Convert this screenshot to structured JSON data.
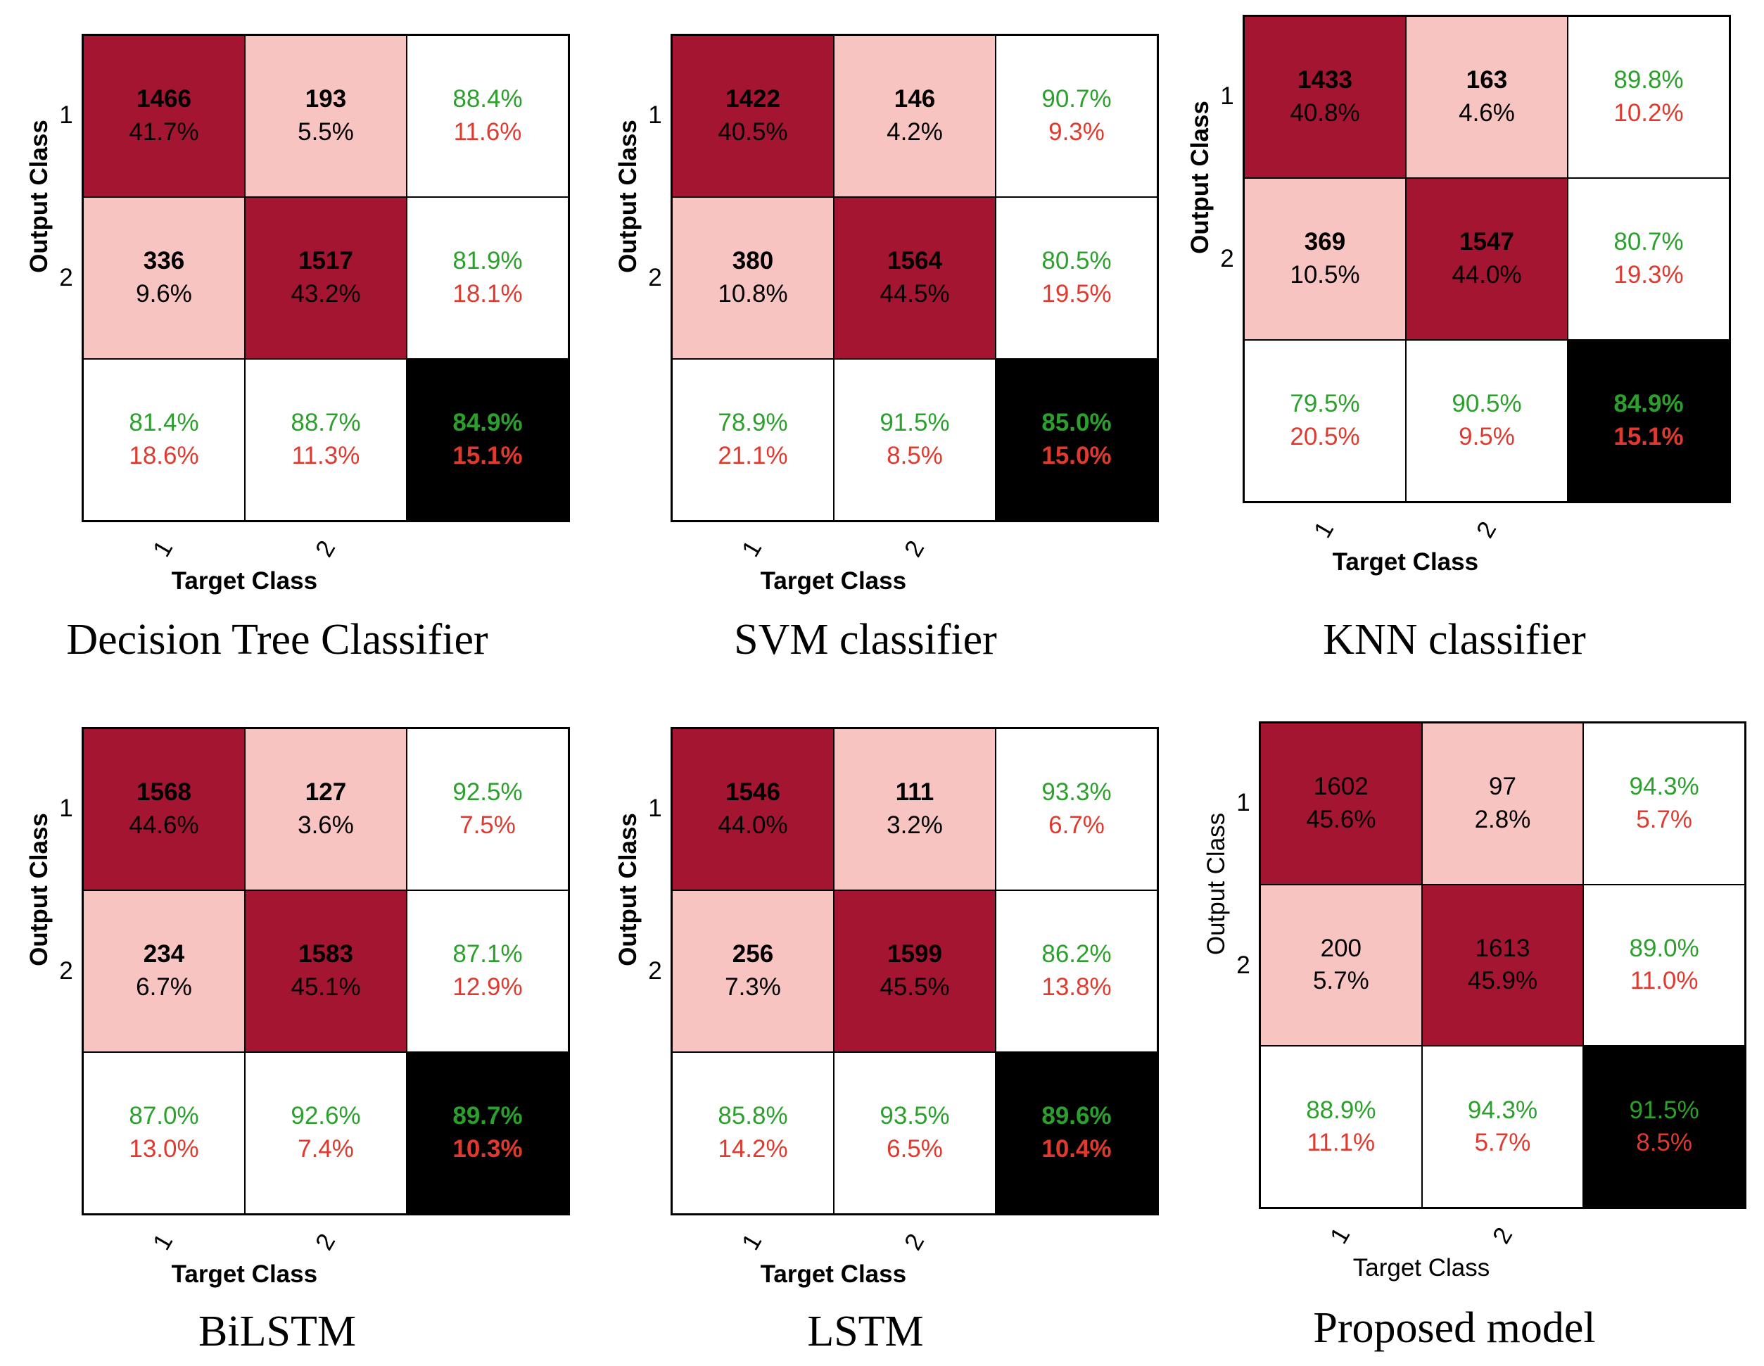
{
  "chart_data": [
    {
      "type": "table",
      "title": "Decision Tree Classifier",
      "ylabel": "Output Class",
      "xlabel": "Target Class",
      "row_ticks": [
        "1",
        "2"
      ],
      "col_ticks": [
        "1",
        "2"
      ],
      "matrix": [
        [
          {
            "n": "1466",
            "p": "41.7%"
          },
          {
            "n": "193",
            "p": "5.5%"
          },
          {
            "g": "88.4%",
            "r": "11.6%"
          }
        ],
        [
          {
            "n": "336",
            "p": "9.6%"
          },
          {
            "n": "1517",
            "p": "43.2%"
          },
          {
            "g": "81.9%",
            "r": "18.1%"
          }
        ],
        [
          {
            "g": "81.4%",
            "r": "18.6%"
          },
          {
            "g": "88.7%",
            "r": "11.3%"
          },
          {
            "g": "84.9%",
            "r": "15.1%"
          }
        ]
      ]
    },
    {
      "type": "table",
      "title": "SVM classifier",
      "ylabel": "Output Class",
      "xlabel": "Target Class",
      "row_ticks": [
        "1",
        "2"
      ],
      "col_ticks": [
        "1",
        "2"
      ],
      "matrix": [
        [
          {
            "n": "1422",
            "p": "40.5%"
          },
          {
            "n": "146",
            "p": "4.2%"
          },
          {
            "g": "90.7%",
            "r": "9.3%"
          }
        ],
        [
          {
            "n": "380",
            "p": "10.8%"
          },
          {
            "n": "1564",
            "p": "44.5%"
          },
          {
            "g": "80.5%",
            "r": "19.5%"
          }
        ],
        [
          {
            "g": "78.9%",
            "r": "21.1%"
          },
          {
            "g": "91.5%",
            "r": "8.5%"
          },
          {
            "g": "85.0%",
            "r": "15.0%"
          }
        ]
      ]
    },
    {
      "type": "table",
      "title": "KNN classifier",
      "ylabel": "Output Class",
      "xlabel": "Target Class",
      "row_ticks": [
        "1",
        "2"
      ],
      "col_ticks": [
        "1",
        "2"
      ],
      "matrix": [
        [
          {
            "n": "1433",
            "p": "40.8%"
          },
          {
            "n": "163",
            "p": "4.6%"
          },
          {
            "g": "89.8%",
            "r": "10.2%"
          }
        ],
        [
          {
            "n": "369",
            "p": "10.5%"
          },
          {
            "n": "1547",
            "p": "44.0%"
          },
          {
            "g": "80.7%",
            "r": "19.3%"
          }
        ],
        [
          {
            "g": "79.5%",
            "r": "20.5%"
          },
          {
            "g": "90.5%",
            "r": "9.5%"
          },
          {
            "g": "84.9%",
            "r": "15.1%"
          }
        ]
      ]
    },
    {
      "type": "table",
      "title": "BiLSTM",
      "ylabel": "Output Class",
      "xlabel": "Target Class",
      "row_ticks": [
        "1",
        "2"
      ],
      "col_ticks": [
        "1",
        "2"
      ],
      "matrix": [
        [
          {
            "n": "1568",
            "p": "44.6%"
          },
          {
            "n": "127",
            "p": "3.6%"
          },
          {
            "g": "92.5%",
            "r": "7.5%"
          }
        ],
        [
          {
            "n": "234",
            "p": "6.7%"
          },
          {
            "n": "1583",
            "p": "45.1%"
          },
          {
            "g": "87.1%",
            "r": "12.9%"
          }
        ],
        [
          {
            "g": "87.0%",
            "r": "13.0%"
          },
          {
            "g": "92.6%",
            "r": "7.4%"
          },
          {
            "g": "89.7%",
            "r": "10.3%"
          }
        ]
      ]
    },
    {
      "type": "table",
      "title": "LSTM",
      "ylabel": "Output Class",
      "xlabel": "Target Class",
      "row_ticks": [
        "1",
        "2"
      ],
      "col_ticks": [
        "1",
        "2"
      ],
      "matrix": [
        [
          {
            "n": "1546",
            "p": "44.0%"
          },
          {
            "n": "111",
            "p": "3.2%"
          },
          {
            "g": "93.3%",
            "r": "6.7%"
          }
        ],
        [
          {
            "n": "256",
            "p": "7.3%"
          },
          {
            "n": "1599",
            "p": "45.5%"
          },
          {
            "g": "86.2%",
            "r": "13.8%"
          }
        ],
        [
          {
            "g": "85.8%",
            "r": "14.2%"
          },
          {
            "g": "93.5%",
            "r": "6.5%"
          },
          {
            "g": "89.6%",
            "r": "10.4%"
          }
        ]
      ]
    },
    {
      "type": "table",
      "title": "Proposed model",
      "ylabel": "Output Class",
      "xlabel": "Target Class",
      "row_ticks": [
        "1",
        "2"
      ],
      "col_ticks": [
        "1",
        "2"
      ],
      "matrix": [
        [
          {
            "n": "1602",
            "p": "45.6%"
          },
          {
            "n": "97",
            "p": "2.8%"
          },
          {
            "g": "94.3%",
            "r": "5.7%"
          }
        ],
        [
          {
            "n": "200",
            "p": "5.7%"
          },
          {
            "n": "1613",
            "p": "45.9%"
          },
          {
            "g": "89.0%",
            "r": "11.0%"
          }
        ],
        [
          {
            "g": "88.9%",
            "r": "11.1%"
          },
          {
            "g": "94.3%",
            "r": "5.7%"
          },
          {
            "g": "91.5%",
            "r": "8.5%"
          }
        ]
      ]
    }
  ],
  "colors": {
    "diagonal": "#a31530",
    "off_diagonal": "#f7c4c1",
    "summary": "#ffffff",
    "total": "#000000",
    "correct_text": "#2ca02c",
    "error_text": "#e03a2f"
  }
}
